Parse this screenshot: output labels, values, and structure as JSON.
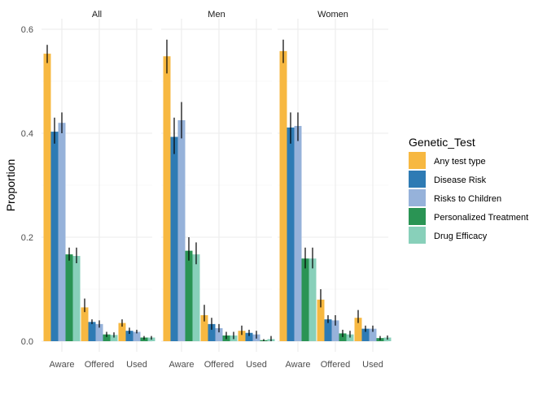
{
  "chart_data": {
    "type": "bar",
    "ylabel": "Proportion",
    "xlabel": "",
    "ylim": [
      0,
      0.6
    ],
    "y_ticks": [
      "0.0",
      "0.2",
      "0.4",
      "0.6"
    ],
    "y_tick_values": [
      0,
      0.2,
      0.4,
      0.6
    ],
    "categories": [
      "Aware",
      "Offered",
      "Used"
    ],
    "legend": {
      "title": "Genetic_Test",
      "position": "right",
      "items": [
        {
          "name": "Any test type",
          "color": "#F7B841"
        },
        {
          "name": "Disease Risk",
          "color": "#2E7BB4"
        },
        {
          "name": "Risks to Children",
          "color": "#96B2DA"
        },
        {
          "name": "Personalized Treatment",
          "color": "#2A9454"
        },
        {
          "name": "Drug Efficacy",
          "color": "#88D0BA"
        }
      ]
    },
    "panels": [
      {
        "title": "All",
        "series": [
          {
            "name": "Any test type",
            "values": [
              0.553,
              0.065,
              0.035
            ],
            "lower": [
              0.535,
              0.056,
              0.028
            ],
            "upper": [
              0.57,
              0.082,
              0.042
            ]
          },
          {
            "name": "Disease Risk",
            "values": [
              0.403,
              0.037,
              0.02
            ],
            "lower": [
              0.38,
              0.033,
              0.014
            ],
            "upper": [
              0.43,
              0.042,
              0.026
            ]
          },
          {
            "name": "Risks to Children",
            "values": [
              0.42,
              0.033,
              0.018
            ],
            "lower": [
              0.4,
              0.026,
              0.015
            ],
            "upper": [
              0.44,
              0.04,
              0.022
            ]
          },
          {
            "name": "Personalized Treatment",
            "values": [
              0.167,
              0.013,
              0.007
            ],
            "lower": [
              0.155,
              0.008,
              0.003
            ],
            "upper": [
              0.18,
              0.018,
              0.01
            ]
          },
          {
            "name": "Drug Efficacy",
            "values": [
              0.164,
              0.012,
              0.007
            ],
            "lower": [
              0.15,
              0.007,
              0.003
            ],
            "upper": [
              0.18,
              0.017,
              0.01
            ]
          }
        ]
      },
      {
        "title": "Men",
        "series": [
          {
            "name": "Any test type",
            "values": [
              0.548,
              0.05,
              0.02
            ],
            "lower": [
              0.515,
              0.038,
              0.012
            ],
            "upper": [
              0.58,
              0.07,
              0.03
            ]
          },
          {
            "name": "Disease Risk",
            "values": [
              0.393,
              0.033,
              0.016
            ],
            "lower": [
              0.36,
              0.022,
              0.01
            ],
            "upper": [
              0.43,
              0.045,
              0.022
            ]
          },
          {
            "name": "Risks to Children",
            "values": [
              0.425,
              0.025,
              0.013
            ],
            "lower": [
              0.39,
              0.017,
              0.005
            ],
            "upper": [
              0.46,
              0.033,
              0.02
            ]
          },
          {
            "name": "Personalized Treatment",
            "values": [
              0.174,
              0.011,
              0.002
            ],
            "lower": [
              0.155,
              0.004,
              0.0
            ],
            "upper": [
              0.2,
              0.018,
              0.004
            ]
          },
          {
            "name": "Drug Efficacy",
            "values": [
              0.167,
              0.011,
              0.004
            ],
            "lower": [
              0.148,
              0.004,
              0.0
            ],
            "upper": [
              0.19,
              0.018,
              0.01
            ]
          }
        ]
      },
      {
        "title": "Women",
        "series": [
          {
            "name": "Any test type",
            "values": [
              0.558,
              0.08,
              0.045
            ],
            "lower": [
              0.535,
              0.065,
              0.035
            ],
            "upper": [
              0.58,
              0.1,
              0.06
            ]
          },
          {
            "name": "Disease Risk",
            "values": [
              0.411,
              0.042,
              0.024
            ],
            "lower": [
              0.38,
              0.035,
              0.018
            ],
            "upper": [
              0.44,
              0.05,
              0.03
            ]
          },
          {
            "name": "Risks to Children",
            "values": [
              0.414,
              0.04,
              0.024
            ],
            "lower": [
              0.385,
              0.03,
              0.018
            ],
            "upper": [
              0.44,
              0.05,
              0.03
            ]
          },
          {
            "name": "Personalized Treatment",
            "values": [
              0.159,
              0.015,
              0.006
            ],
            "lower": [
              0.14,
              0.008,
              0.002
            ],
            "upper": [
              0.18,
              0.022,
              0.01
            ]
          },
          {
            "name": "Drug Efficacy",
            "values": [
              0.159,
              0.013,
              0.007
            ],
            "lower": [
              0.14,
              0.007,
              0.003
            ],
            "upper": [
              0.18,
              0.02,
              0.011
            ]
          }
        ]
      }
    ]
  }
}
